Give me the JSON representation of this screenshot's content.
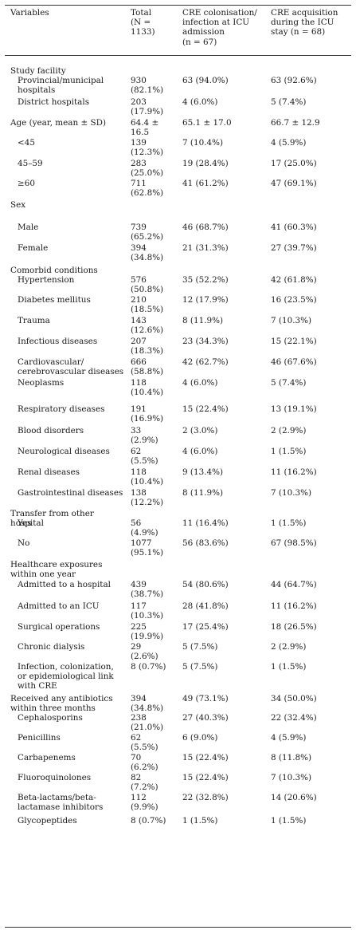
{
  "header": [
    [
      "Variables"
    ],
    [
      "Total",
      "(N =",
      "1133)"
    ],
    [
      "CRE colonisation/",
      "infection at ICU",
      "admission",
      "(n = 67)"
    ],
    [
      "CRE acquisition",
      "during the ICU",
      "stay (n = 68)"
    ]
  ],
  "rows": [
    {
      "cells": [
        [
          "Study facility"
        ],
        [],
        [],
        []
      ],
      "indent": false
    },
    {
      "cells": [
        [
          "Provincial/municipal",
          "hospitals"
        ],
        [
          "930",
          "(82.1%)"
        ],
        [
          "63 (94.0%)"
        ],
        [
          "63 (92.6%)"
        ]
      ],
      "indent": true
    },
    {
      "cells": [
        [
          "District hospitals"
        ],
        [
          "203",
          "(17.9%)"
        ],
        [
          "4 (6.0%)"
        ],
        [
          "5 (7.4%)"
        ]
      ],
      "indent": true
    },
    {
      "cells": [
        [
          "Age (year, mean ± SD)"
        ],
        [
          "64.4 ±",
          "16.5"
        ],
        [
          "65.1 ± 17.0"
        ],
        [
          "66.7 ± 12.9"
        ]
      ],
      "indent": false
    },
    {
      "cells": [
        [
          "<45"
        ],
        [
          "139",
          "(12.3%)"
        ],
        [
          "7 (10.4%)"
        ],
        [
          "4 (5.9%)"
        ]
      ],
      "indent": true
    },
    {
      "cells": [
        [
          "45–59"
        ],
        [
          "283",
          "(25.0%)"
        ],
        [
          "19 (28.4%)"
        ],
        [
          "17 (25.0%)"
        ]
      ],
      "indent": true
    },
    {
      "cells": [
        [
          "≥60"
        ],
        [
          "711",
          "(62.8%)"
        ],
        [
          "41 (61.2%)"
        ],
        [
          "47 (69.1%)"
        ]
      ],
      "indent": true
    },
    {
      "cells": [
        [
          "Sex"
        ],
        [],
        [],
        []
      ],
      "indent": false
    },
    {
      "cells": [
        [
          "Male"
        ],
        [
          "739",
          "(65.2%)"
        ],
        [
          "46 (68.7%)"
        ],
        [
          "41 (60.3%)"
        ]
      ],
      "indent": true
    },
    {
      "cells": [
        [
          "Female"
        ],
        [
          "394",
          "(34.8%)"
        ],
        [
          "21 (31.3%)"
        ],
        [
          "27 (39.7%)"
        ]
      ],
      "indent": true
    },
    {
      "cells": [
        [
          "Comorbid conditions"
        ],
        [],
        [],
        []
      ],
      "indent": false
    },
    {
      "cells": [
        [
          "Hypertension"
        ],
        [
          "576",
          "(50.8%)"
        ],
        [
          "35 (52.2%)"
        ],
        [
          "42 (61.8%)"
        ]
      ],
      "indent": true
    },
    {
      "cells": [
        [
          "Diabetes mellitus"
        ],
        [
          "210",
          "(18.5%)"
        ],
        [
          "12 (17.9%)"
        ],
        [
          "16 (23.5%)"
        ]
      ],
      "indent": true
    },
    {
      "cells": [
        [
          "Trauma"
        ],
        [
          "143",
          "(12.6%)"
        ],
        [
          "8 (11.9%)"
        ],
        [
          "7 (10.3%)"
        ]
      ],
      "indent": true
    },
    {
      "cells": [
        [
          "Infectious diseases"
        ],
        [
          "207",
          "(18.3%)"
        ],
        [
          "23 (34.3%)"
        ],
        [
          "15 (22.1%)"
        ]
      ],
      "indent": true
    },
    {
      "cells": [
        [
          "Cardiovascular/",
          "cerebrovascular diseases"
        ],
        [
          "666",
          "(58.8%)"
        ],
        [
          "42 (62.7%)"
        ],
        [
          "46 (67.6%)"
        ]
      ],
      "indent": true
    },
    {
      "cells": [
        [
          "Neoplasms"
        ],
        [
          "118",
          "(10.4%)"
        ],
        [
          "4 (6.0%)"
        ],
        [
          "5 (7.4%)"
        ]
      ],
      "indent": true
    },
    {
      "cells": [
        [
          "Respiratory diseases"
        ],
        [
          "191",
          "(16.9%)"
        ],
        [
          "15 (22.4%)"
        ],
        [
          "13 (19.1%)"
        ]
      ],
      "indent": true
    },
    {
      "cells": [
        [
          "Blood disorders"
        ],
        [
          "33",
          "(2.9%)"
        ],
        [
          "2 (3.0%)"
        ],
        [
          "2 (2.9%)"
        ]
      ],
      "indent": true
    },
    {
      "cells": [
        [
          "Neurological diseases"
        ],
        [
          "62",
          "(5.5%)"
        ],
        [
          "4 (6.0%)"
        ],
        [
          "1 (1.5%)"
        ]
      ],
      "indent": true
    },
    {
      "cells": [
        [
          "Renal diseases"
        ],
        [
          "118",
          "(10.4%)"
        ],
        [
          "9 (13.4%)"
        ],
        [
          "11 (16.2%)"
        ]
      ],
      "indent": true
    },
    {
      "cells": [
        [
          "Gastrointestinal diseases"
        ],
        [
          "138",
          "(12.2%)"
        ],
        [
          "8 (11.9%)"
        ],
        [
          "7 (10.3%)"
        ]
      ],
      "indent": true
    },
    {
      "cells": [
        [
          "Transfer from other",
          "hospital"
        ],
        [],
        [],
        []
      ],
      "indent": false
    },
    {
      "cells": [
        [
          "Yes"
        ],
        [
          "56",
          "(4.9%)"
        ],
        [
          "11 (16.4%)"
        ],
        [
          "1 (1.5%)"
        ]
      ],
      "indent": true
    },
    {
      "cells": [
        [
          "No"
        ],
        [
          "1077",
          "(95.1%)"
        ],
        [
          "56 (83.6%)"
        ],
        [
          "67 (98.5%)"
        ]
      ],
      "indent": true
    },
    {
      "cells": [
        [
          "Healthcare exposures",
          "within one year"
        ],
        [],
        [],
        []
      ],
      "indent": false
    },
    {
      "cells": [
        [
          "Admitted to a hospital"
        ],
        [
          "439",
          "(38.7%)"
        ],
        [
          "54 (80.6%)"
        ],
        [
          "44 (64.7%)"
        ]
      ],
      "indent": true
    },
    {
      "cells": [
        [
          "Admitted to an ICU"
        ],
        [
          "117",
          "(10.3%)"
        ],
        [
          "28 (41.8%)"
        ],
        [
          "11 (16.2%)"
        ]
      ],
      "indent": true
    },
    {
      "cells": [
        [
          "Surgical operations"
        ],
        [
          "225",
          "(19.9%)"
        ],
        [
          "17 (25.4%)"
        ],
        [
          "18 (26.5%)"
        ]
      ],
      "indent": true
    },
    {
      "cells": [
        [
          "Chronic dialysis"
        ],
        [
          "29",
          "(2.6%)"
        ],
        [
          "5 (7.5%)"
        ],
        [
          "2 (2.9%)"
        ]
      ],
      "indent": true
    },
    {
      "cells": [
        [
          "Infection, colonization,",
          "or epidemiological link",
          "with CRE"
        ],
        [
          "8 (0.7%)"
        ],
        [
          "5 (7.5%)"
        ],
        [
          "1 (1.5%)"
        ]
      ],
      "indent": true
    },
    {
      "cells": [
        [
          "Received any antibiotics",
          "within three months"
        ],
        [
          "394",
          "(34.8%)"
        ],
        [
          "49 (73.1%)"
        ],
        [
          "34 (50.0%)"
        ]
      ],
      "indent": false
    },
    {
      "cells": [
        [
          "Cephalosporins"
        ],
        [
          "238",
          "(21.0%)"
        ],
        [
          "27 (40.3%)"
        ],
        [
          "22 (32.4%)"
        ]
      ],
      "indent": true
    },
    {
      "cells": [
        [
          "Penicillins"
        ],
        [
          "62",
          "(5.5%)"
        ],
        [
          "6 (9.0%)"
        ],
        [
          "4 (5.9%)"
        ]
      ],
      "indent": true
    },
    {
      "cells": [
        [
          "Carbapenems"
        ],
        [
          "70",
          "(6.2%)"
        ],
        [
          "15 (22.4%)"
        ],
        [
          "8 (11.8%)"
        ]
      ],
      "indent": true
    },
    {
      "cells": [
        [
          "Fluoroquinolones"
        ],
        [
          "82",
          "(7.2%)"
        ],
        [
          "15 (22.4%)"
        ],
        [
          "7 (10.3%)"
        ]
      ],
      "indent": true
    },
    {
      "cells": [
        [
          "Beta-lactams/beta-",
          "lactamase inhibitors"
        ],
        [
          "112",
          "(9.9%)"
        ],
        [
          "22 (32.8%)"
        ],
        [
          "14 (20.6%)"
        ]
      ],
      "indent": true
    },
    {
      "cells": [
        [
          "Glycopeptides"
        ],
        [
          "8 (0.7%)"
        ],
        [
          "1 (1.5%)"
        ],
        [
          "1 (1.5%)"
        ]
      ],
      "indent": true
    }
  ]
}
